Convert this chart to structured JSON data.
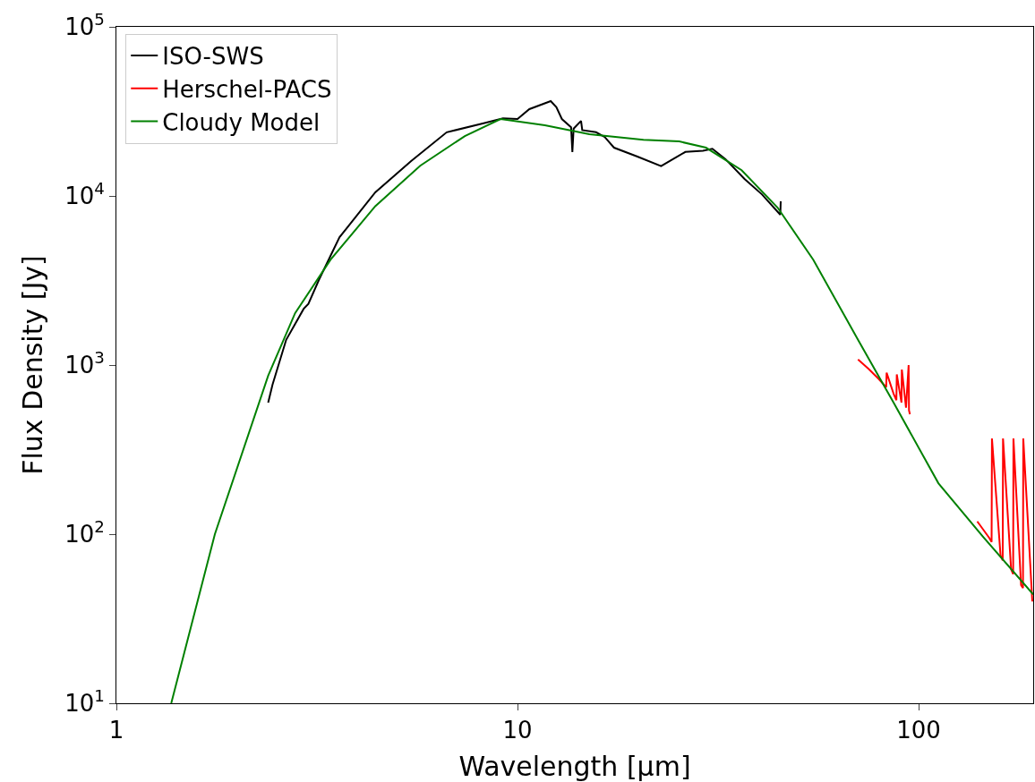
{
  "chart_data": {
    "type": "line",
    "xlabel": "Wavelength [μm]",
    "ylabel": "Flux Density [Jy]",
    "log": "xy",
    "legend": "top left",
    "marker": "none",
    "line_style": "solid",
    "xlim": [
      1,
      193
    ],
    "xticks": [
      1,
      10,
      100
    ],
    "ylim": [
      10,
      100000
    ],
    "yticks": [
      {
        "value": 10,
        "label": "10$^{1}$"
      },
      {
        "value": 100,
        "label": "10$^{2}$"
      },
      {
        "value": 1000,
        "label": "10$^{3}$"
      },
      {
        "value": 10000,
        "label": "10$^{4}$"
      },
      {
        "value": 100000,
        "label": "10$^{5}$"
      }
    ],
    "series": [
      {
        "name": "ISO-SWS",
        "color": "#000000",
        "x": [
          2.39,
          2.45,
          2.65,
          2.93,
          3.01,
          3.2,
          3.6,
          4.42,
          5.43,
          6.66,
          8.19,
          9.2,
          10.0,
          10.7,
          12.1,
          12.5,
          12.9,
          13.6,
          13.7,
          13.8,
          14.4,
          14.5,
          15.7,
          16.5,
          17.4,
          19.9,
          22.8,
          24.4,
          26.2,
          29.0,
          30.6,
          33.0,
          36.8,
          40.7,
          45.2,
          45.3
        ],
        "values": [
          600,
          765,
          1410,
          2150,
          2300,
          3200,
          5700,
          10500,
          16100,
          23800,
          26800,
          28800,
          28500,
          32600,
          36400,
          33500,
          28500,
          25500,
          18200,
          25000,
          27800,
          24500,
          23800,
          22300,
          19300,
          17100,
          15000,
          16500,
          18200,
          18500,
          19000,
          16500,
          12600,
          10200,
          7740,
          9300
        ]
      },
      {
        "name": "Herschel-PACS",
        "color": "#ff0000",
        "x": [
          70.6,
          75,
          79.3,
          83,
          83.2,
          86.6,
          88,
          88.2,
          90.6,
          90.8,
          93,
          94.4,
          94.6,
          95.1,
          null,
          140,
          150,
          152,
          152.3,
          160,
          162,
          162.3,
          170,
          172,
          172.3,
          180,
          182,
          182.3,
          192
        ],
        "values": [
          1080,
          950,
          833,
          740,
          900,
          676,
          620,
          880,
          600,
          940,
          560,
          1000,
          540,
          512,
          null,
          119,
          95,
          90,
          368,
          75,
          70,
          368,
          62,
          58,
          368,
          50,
          48,
          368,
          40
        ]
      },
      {
        "name": "Cloudy Model",
        "color": "#008000",
        "x": [
          1.37,
          1.76,
          2.39,
          2.79,
          3.42,
          4.42,
          5.72,
          7.39,
          9.07,
          11.7,
          15.1,
          20.6,
          25.3,
          29.5,
          36.2,
          44.5,
          54.6,
          70.6,
          86.6,
          112,
          145,
          193
        ],
        "values": [
          10,
          100,
          865,
          2030,
          4200,
          8700,
          15100,
          22600,
          28500,
          26200,
          23200,
          21500,
          21000,
          19300,
          14200,
          8530,
          4200,
          1410,
          600,
          200,
          96,
          44
        ]
      }
    ]
  }
}
